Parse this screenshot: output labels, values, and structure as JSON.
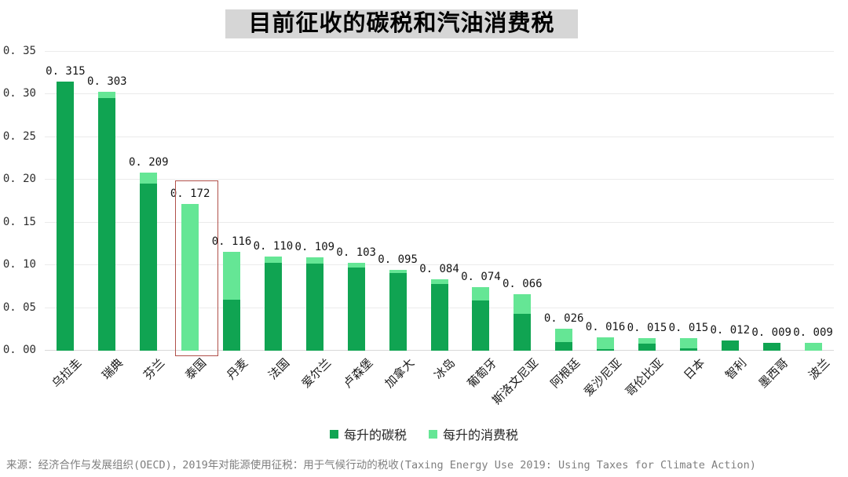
{
  "title": "目前征收的碳税和汽油消费税",
  "legend": {
    "carbon": "每升的碳税",
    "consumption": "每升的消费税"
  },
  "source": "来源：经济合作与发展组织(OECD)，2019年对能源使用征税：用于气候行动的税收(Taxing Energy Use 2019: Using Taxes for Climate Action)",
  "colors": {
    "carbon": "#10a452",
    "consumption": "#65e695",
    "highlight_box": "#b0504a",
    "title_bg": "#d6d6d6",
    "gridline": "#ebebeb",
    "axis_line": "#d8d8d8",
    "source_text": "#7f7f7f"
  },
  "chart_data": {
    "type": "bar",
    "stacked": true,
    "title": "目前征收的碳税和汽油消费税",
    "categories": [
      "乌拉圭",
      "瑞典",
      "芬兰",
      "泰国",
      "丹麦",
      "法国",
      "爱尔兰",
      "卢森堡",
      "加拿大",
      "冰岛",
      "葡萄牙",
      "斯洛文尼亚",
      "阿根廷",
      "爱沙尼亚",
      "哥伦比亚",
      "日本",
      "智利",
      "墨西哥",
      "波兰"
    ],
    "series": [
      {
        "name": "每升的碳税",
        "color_key": "carbon",
        "values": [
          0.315,
          0.296,
          0.196,
          0,
          0.06,
          0.103,
          0.102,
          0.097,
          0.091,
          0.078,
          0.059,
          0.043,
          0.01,
          0.002,
          0.008,
          0.003,
          0.012,
          0.009,
          0
        ]
      },
      {
        "name": "每升的消费税",
        "color_key": "consumption",
        "values": [
          0,
          0.007,
          0.013,
          0.172,
          0.056,
          0.007,
          0.007,
          0.006,
          0.004,
          0.006,
          0.015,
          0.023,
          0.016,
          0.014,
          0.007,
          0.012,
          0,
          0,
          0.009
        ]
      }
    ],
    "totals": [
      0.315,
      0.303,
      0.209,
      0.172,
      0.116,
      0.11,
      0.109,
      0.103,
      0.095,
      0.084,
      0.074,
      0.066,
      0.026,
      0.016,
      0.015,
      0.015,
      0.012,
      0.009,
      0.009
    ],
    "total_labels": [
      "0. 315",
      "0. 303",
      "0. 209",
      "0. 172",
      "0. 116",
      "0. 110",
      "0. 109",
      "0. 103",
      "0. 095",
      "0. 084",
      "0. 074",
      "0. 066",
      "0. 026",
      "0. 016",
      "0. 015",
      "0. 015",
      "0. 012",
      "0. 009",
      "0. 009"
    ],
    "y_ticks": [
      0,
      0.05,
      0.1,
      0.15,
      0.2,
      0.25,
      0.3,
      0.35
    ],
    "y_tick_labels": [
      "0. 00",
      "0. 05",
      "0. 10",
      "0. 15",
      "0. 20",
      "0. 25",
      "0. 30",
      "0. 35"
    ],
    "ylim": [
      0,
      0.35
    ],
    "grid": true,
    "legend_position": "bottom",
    "highlight": {
      "category": "泰国",
      "index": 3
    }
  }
}
